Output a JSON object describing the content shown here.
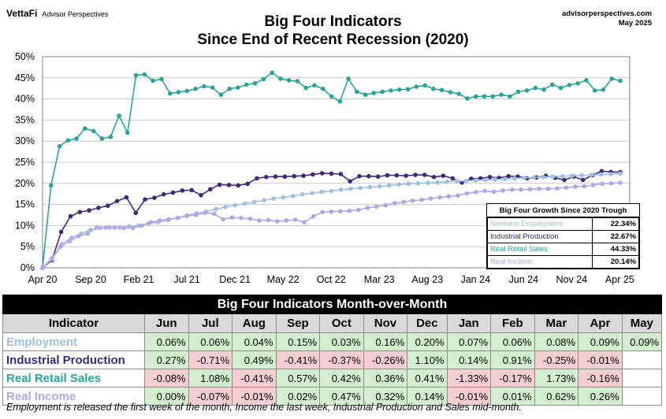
{
  "header": {
    "logo_brand": "VettaFi",
    "logo_sub": "Advisor Perspectives",
    "site": "advisorperspectives.com",
    "date": "May 2025",
    "title_line1": "Big Four Indicators",
    "title_line2": "Since  End of Recent Recession (2020)"
  },
  "colors": {
    "employment": "#9ec0e0",
    "industrial": "#3d2a7a",
    "retail": "#2aa39a",
    "income": "#b3a6e6",
    "positive_cell": "#d4efcf",
    "negative_cell": "#f6cdd0"
  },
  "chart_data": {
    "type": "line",
    "title": "Big Four Indicators Since  End of Recent Recession (2020)",
    "y_ticks": [
      "0%",
      "5%",
      "10%",
      "15%",
      "20%",
      "25%",
      "30%",
      "35%",
      "40%",
      "45%",
      "50%"
    ],
    "ylim": [
      0,
      50
    ],
    "x_tick_labels": [
      "Apr 20",
      "Sep 20",
      "Feb 21",
      "Jul 21",
      "Dec 21",
      "May 22",
      "Oct 22",
      "Mar 23",
      "Aug 23",
      "Jan 24",
      "Jun 24",
      "Nov 24",
      "Apr 25"
    ],
    "x_tick_index": [
      0,
      5,
      10,
      15,
      20,
      25,
      30,
      35,
      40,
      45,
      50,
      55,
      60
    ],
    "grid": true,
    "series": [
      {
        "name": "Real Retail Sales",
        "color": "#2aa39a",
        "values": [
          0,
          19.5,
          28.8,
          30.2,
          30.6,
          33.0,
          32.4,
          30.6,
          31.0,
          36.0,
          32.0,
          45.6,
          45.8,
          44.3,
          44.7,
          41.3,
          41.6,
          41.9,
          42.4,
          43.0,
          42.7,
          41.0,
          42.4,
          42.7,
          43.4,
          43.7,
          44.7,
          46.2,
          44.8,
          44.4,
          44.2,
          42.6,
          43.2,
          42.4,
          40.6,
          39.4,
          44.8,
          41.7,
          41.0,
          41.4,
          41.7,
          42.0,
          42.2,
          42.3,
          42.9,
          43.2,
          42.4,
          42.1,
          41.6,
          41.2,
          40.1,
          40.6,
          40.6,
          40.6,
          41.0,
          40.6,
          41.7,
          42.0,
          42.6,
          42.2,
          43.4,
          42.6,
          43.3,
          43.7,
          44.4,
          42.0,
          42.2,
          44.8,
          44.3
        ]
      },
      {
        "name": "Industrial Production",
        "color": "#3d2a7a",
        "values": [
          0,
          1.8,
          8.5,
          12.2,
          13.2,
          13.6,
          14.2,
          14.7,
          15.8,
          16.7,
          13.0,
          16.2,
          16.6,
          17.4,
          17.8,
          18.3,
          18.4,
          17.2,
          18.6,
          19.7,
          19.6,
          19.5,
          19.9,
          21.2,
          21.5,
          21.6,
          21.6,
          21.7,
          21.8,
          22.1,
          22.4,
          22.3,
          22.2,
          20.5,
          21.7,
          21.7,
          21.6,
          21.9,
          21.9,
          21.8,
          22.0,
          22.0,
          21.5,
          21.8,
          21.2,
          20.2,
          21.1,
          21.2,
          21.5,
          21.3,
          21.7,
          21.6,
          21.2,
          21.4,
          21.8,
          21.3,
          20.8,
          21.6,
          20.8,
          21.9,
          22.9,
          22.7,
          22.67
        ]
      },
      {
        "name": "Nonfarm Employment",
        "color": "#9ec0e0",
        "values": [
          0,
          2.4,
          5.6,
          7.1,
          8.1,
          9.0,
          9.4,
          9.5,
          9.5,
          9.8,
          10.0,
          10.5,
          10.8,
          11.3,
          11.8,
          12.4,
          12.9,
          13.3,
          13.9,
          14.4,
          14.8,
          15.2,
          15.6,
          16.0,
          16.4,
          16.7,
          17.0,
          17.4,
          17.7,
          18.0,
          18.2,
          18.5,
          18.7,
          18.9,
          19.1,
          19.3,
          19.5,
          19.7,
          19.9,
          20.0,
          20.1,
          20.2,
          20.4,
          20.5,
          20.6,
          20.7,
          20.8,
          20.9,
          21.0,
          21.2,
          21.3,
          21.4,
          21.5,
          21.6,
          21.7,
          21.8,
          21.9,
          22.0,
          22.1,
          22.2,
          22.34
        ]
      },
      {
        "name": "Real Income",
        "color": "#b3a6e6",
        "values": [
          0,
          2.0,
          5.0,
          6.3,
          7.5,
          8.1,
          9.5,
          9.5,
          9.5,
          9.4,
          9.4,
          10.0,
          10.8,
          11.2,
          11.5,
          11.8,
          12.3,
          12.5,
          13.0,
          12.8,
          11.5,
          11.9,
          11.8,
          11.6,
          11.2,
          11.3,
          11.0,
          11.2,
          11.4,
          10.8,
          12.2,
          13.2,
          13.3,
          13.4,
          13.5,
          13.7,
          14.2,
          14.5,
          14.8,
          15.3,
          15.6,
          15.9,
          16.1,
          16.4,
          16.7,
          16.9,
          17.1,
          17.6,
          17.9,
          18.2,
          18.0,
          18.3,
          18.5,
          18.5,
          18.6,
          18.7,
          18.7,
          18.8,
          19.0,
          19.2,
          19.3,
          19.6,
          19.9,
          20.0,
          20.14
        ]
      }
    ]
  },
  "growth_table": {
    "title": "Big Four Growth  Since 2020 Trough",
    "rows": [
      {
        "label": "Nonfarm Employment",
        "value": "22.34%",
        "color": "#9ec0e0"
      },
      {
        "label": "Industrial Production",
        "value": "22.67%",
        "color": "#3d2a7a"
      },
      {
        "label": "Real Retail Sales",
        "value": "44.33%",
        "color": "#2aa39a"
      },
      {
        "label": "Real Income",
        "value": "20.14%",
        "color": "#b3a6e6"
      }
    ]
  },
  "mom_table": {
    "banner": "Big Four Indicators Month-over-Month",
    "indicator_header": "Indicator",
    "months": [
      "Jun",
      "Jul",
      "Aug",
      "Sep",
      "Oct",
      "Nov",
      "Dec",
      "Jan",
      "Feb",
      "Mar",
      "Apr",
      "May"
    ],
    "rows": [
      {
        "name": "Employment",
        "color": "#9ec0e0",
        "values": [
          "0.06%",
          "0.06%",
          "0.04%",
          "0.15%",
          "0.03%",
          "0.16%",
          "0.20%",
          "0.07%",
          "0.06%",
          "0.08%",
          "0.09%",
          "0.09%"
        ]
      },
      {
        "name": "Industrial Production",
        "color": "#3d2a7a",
        "values": [
          "0.27%",
          "-0.71%",
          "0.49%",
          "-0.41%",
          "-0.37%",
          "-0.26%",
          "1.10%",
          "0.14%",
          "0.91%",
          "-0.25%",
          "-0.01%",
          ""
        ]
      },
      {
        "name": "Real Retail Sales",
        "color": "#2aa39a",
        "values": [
          "-0.08%",
          "1.08%",
          "-0.41%",
          "0.57%",
          "0.42%",
          "0.36%",
          "0.41%",
          "-1.33%",
          "-0.17%",
          "1.73%",
          "-0.16%",
          ""
        ]
      },
      {
        "name": "Real Income",
        "color": "#b3a6e6",
        "values": [
          "0.00%",
          "-0.07%",
          "-0.01%",
          "0.02%",
          "0.47%",
          "0.32%",
          "0.14%",
          "-0.01%",
          "0.01%",
          "0.62%",
          "0.26%",
          ""
        ]
      }
    ]
  },
  "footnote": "Employment is released the first week of the month, Income the last week, Industrial Production and Sales mid-month."
}
